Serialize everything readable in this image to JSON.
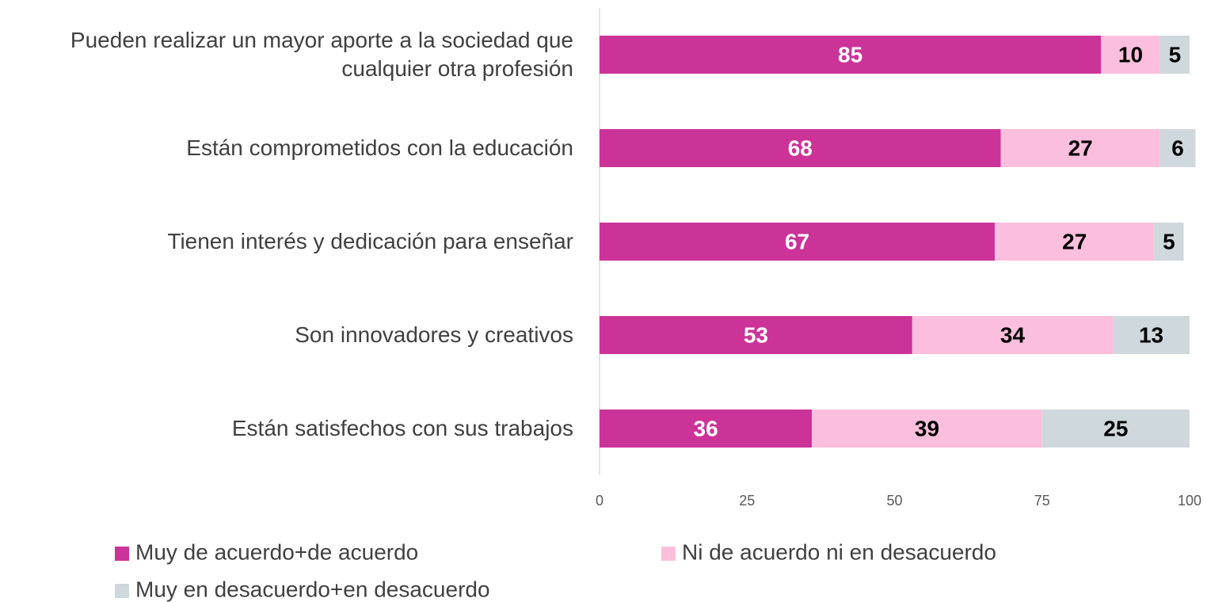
{
  "chart_data": {
    "type": "stacked-bar-horizontal",
    "categories": [
      "Pueden realizar un mayor aporte a la sociedad que cualquier otra profesión",
      "Están comprometidos con la educación",
      "Tienen interés y dedicación para enseñar",
      "Son innovadores y creativos",
      "Están satisfechos con sus trabajos"
    ],
    "series": [
      {
        "name": "Muy de acuerdo+de acuerdo",
        "color": "#cc3399",
        "values": [
          85,
          68,
          67,
          53,
          36
        ]
      },
      {
        "name": "Ni de acuerdo ni en desacuerdo",
        "color": "#fbbfdd",
        "values": [
          10,
          27,
          27,
          34,
          39
        ]
      },
      {
        "name": "Muy en desacuerdo+en desacuerdo",
        "color": "#cfd8dc",
        "values": [
          5,
          6,
          5,
          13,
          25
        ]
      }
    ],
    "xlim": [
      0,
      100
    ],
    "xticks": [
      0,
      25,
      50,
      75,
      100
    ]
  }
}
